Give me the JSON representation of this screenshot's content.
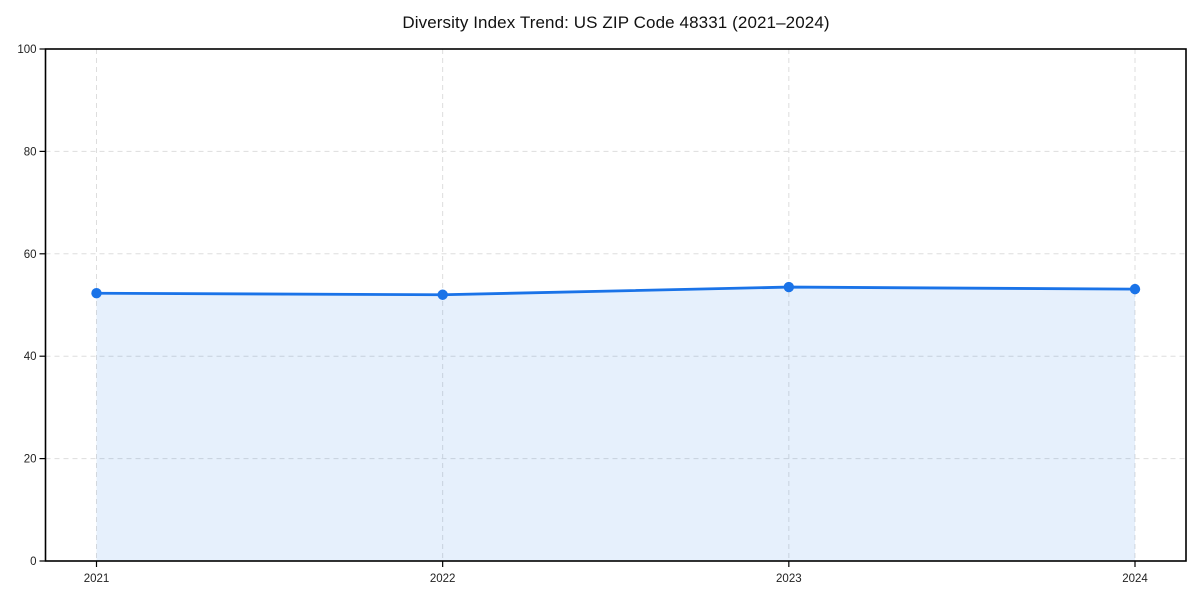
{
  "figure": {
    "background": "#ffffff"
  },
  "chart_data": {
    "type": "area",
    "title": "Diversity Index Trend: US ZIP Code 48331 (2021–2024)",
    "x": [
      "2021",
      "2022",
      "2023",
      "2024"
    ],
    "series": [
      {
        "name": "Diversity Index",
        "values": [
          52.3,
          52.0,
          53.5,
          53.1
        ]
      }
    ],
    "xlabel": "",
    "ylabel": "",
    "ylim": [
      0,
      100
    ],
    "yticks": [
      0,
      20,
      40,
      60,
      80,
      100
    ],
    "grid": true,
    "grid_style": "dashed",
    "legend": false,
    "marker": "circle",
    "colors": {
      "line": "#1a73e8",
      "marker": "#1a73e8",
      "fill": "rgba(26,115,232,0.11)",
      "gridline": "#dddddd",
      "axis": "#000000",
      "tick_label": "#222222",
      "title": "#111111"
    }
  }
}
